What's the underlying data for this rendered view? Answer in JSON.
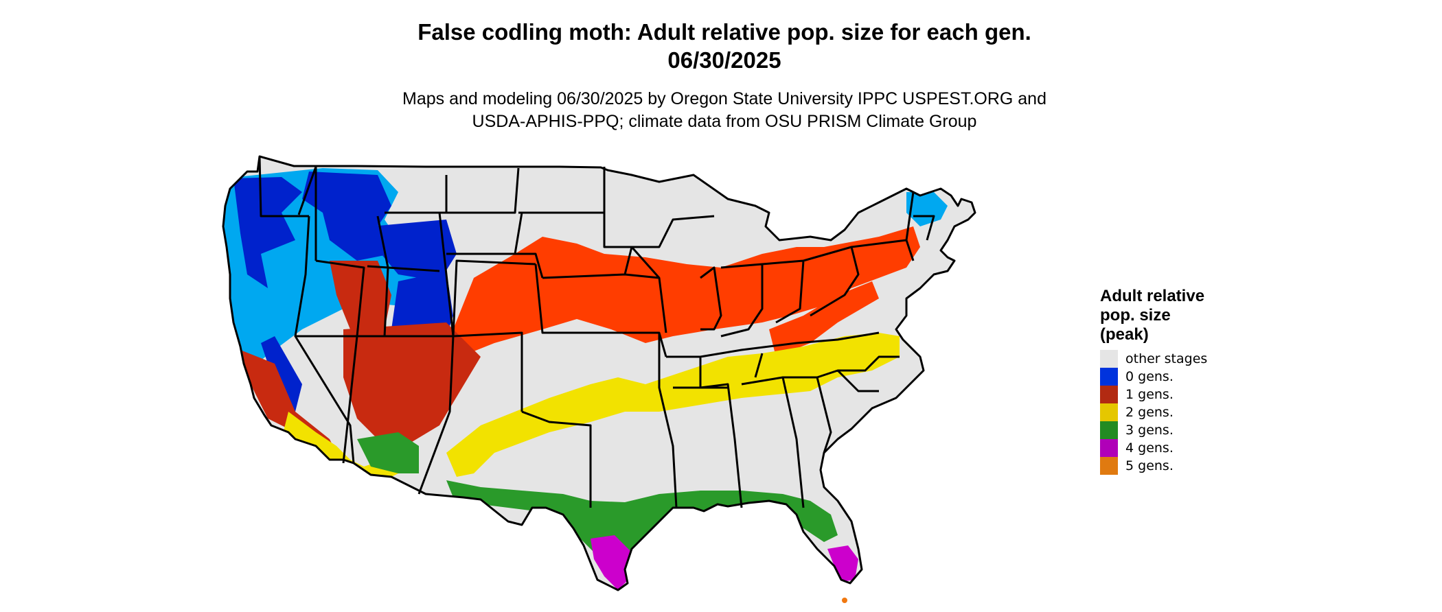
{
  "title": {
    "line1": "False codling moth: Adult relative pop. size for each gen.",
    "line2": "06/30/2025"
  },
  "subtitle": {
    "line1": "Maps and modeling 06/30/2025 by Oregon State University IPPC USPEST.ORG and",
    "line2": "USDA-APHIS-PPQ; climate data from OSU PRISM Climate Group"
  },
  "legend": {
    "title_line1": "Adult relative",
    "title_line2": "pop. size",
    "title_line3": "(peak)",
    "items": [
      {
        "label": "other stages",
        "color": "#e5e5e5"
      },
      {
        "label": "0 gens.",
        "color": "#0033dd"
      },
      {
        "label": "1 gens.",
        "color": "#b22a12"
      },
      {
        "label": "2 gens.",
        "color": "#e5c700"
      },
      {
        "label": "3 gens.",
        "color": "#228b22"
      },
      {
        "label": "4 gens.",
        "color": "#b000b8"
      },
      {
        "label": "5 gens.",
        "color": "#e07a10"
      }
    ]
  },
  "map_colors": {
    "land": "#e5e5e5",
    "border": "#000000",
    "zero_dark": "#0022cc",
    "zero_light": "#00a8f0",
    "one": "#ff3d00",
    "one_dark": "#c82a10",
    "two": "#f2e200",
    "three": "#2a9a2a",
    "four": "#cc00cc",
    "five": "#f07810"
  }
}
